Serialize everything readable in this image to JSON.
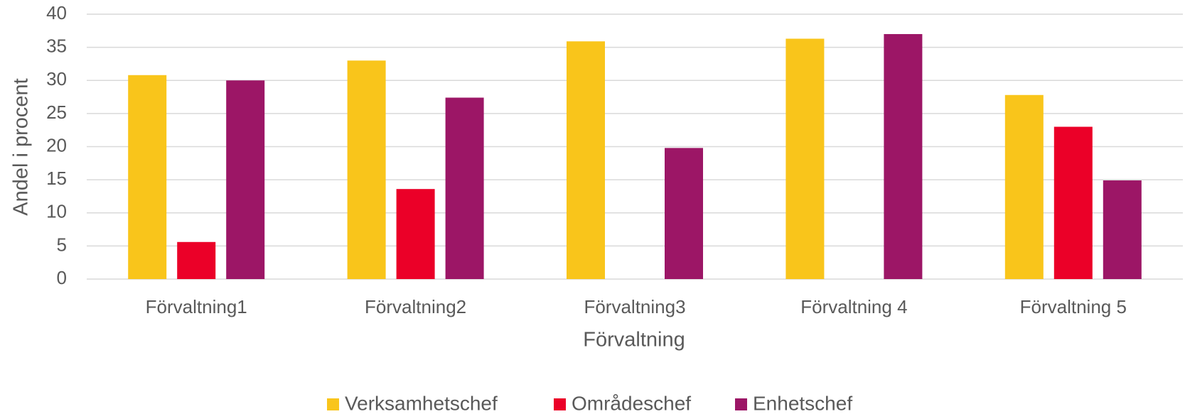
{
  "chart_data": {
    "type": "bar",
    "x_label": "Förvaltning",
    "y_label": "Andel i procent",
    "categories": [
      "Förvaltning1",
      "Förvaltning2",
      "Förvaltning3",
      "Förvaltning 4",
      "Förvaltning 5"
    ],
    "series": [
      {
        "name": "Verksamhetschef",
        "color": "#f9c51b",
        "values": [
          30.8,
          33,
          35.9,
          36.3,
          27.8
        ]
      },
      {
        "name": "Områdeschef",
        "color": "#eb0028",
        "values": [
          5.6,
          13.6,
          null,
          null,
          23
        ]
      },
      {
        "name": "Enhetschef",
        "color": "#9c1666",
        "values": [
          30,
          27.4,
          19.8,
          37,
          14.9
        ]
      }
    ],
    "ylim": [
      0,
      40
    ],
    "yticks": [
      0,
      5,
      10,
      15,
      20,
      25,
      30,
      35,
      40
    ],
    "grid": true,
    "legend": "bottom"
  }
}
